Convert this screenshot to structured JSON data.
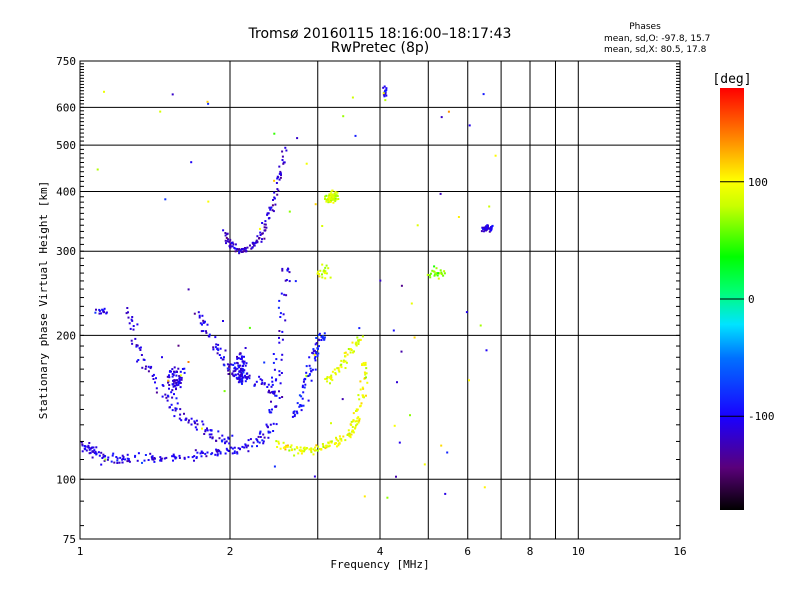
{
  "chart_data": {
    "type": "scatter",
    "title": "Tromsø 20160115 18:16:00–18:17:43",
    "subtitle": "RwPretec (8p)",
    "xlabel": "Frequency [MHz]",
    "ylabel": "Stationary phase Virtual Height [km]",
    "x_scale": "log",
    "y_scale": "log",
    "xlim": [
      1,
      16
    ],
    "ylim": [
      75,
      750
    ],
    "x_ticks": [
      1,
      2,
      4,
      6,
      8,
      10,
      16
    ],
    "x_minor_ticks": [
      3,
      5,
      7,
      9
    ],
    "y_ticks": [
      75,
      100,
      200,
      300,
      400,
      500,
      600,
      750
    ],
    "grid": true,
    "phase_stats": {
      "heading": "Phases",
      "o_line": "mean, sd,O:  -97.8, 15.7",
      "x_line": "mean, sd,X:   80.5, 17.8"
    },
    "colorbar": {
      "label": "[deg]",
      "range": [
        -180,
        180
      ],
      "ticks": [
        100,
        0,
        -100
      ],
      "tick_labels": [
        "100",
        "0",
        "-100"
      ]
    },
    "series_groups": [
      {
        "kind": "line",
        "points": [
          [
            1.0,
            120
          ],
          [
            1.05,
            115
          ],
          [
            1.1,
            112
          ],
          [
            1.2,
            110
          ],
          [
            1.35,
            110
          ],
          [
            1.5,
            111
          ],
          [
            1.7,
            112
          ],
          [
            1.9,
            114
          ],
          [
            2.1,
            116
          ],
          [
            2.3,
            120
          ],
          [
            2.4,
            130
          ],
          [
            2.48,
            160
          ],
          [
            2.55,
            220
          ],
          [
            2.6,
            280
          ]
        ],
        "phase": -105,
        "spread": 0.035
      },
      {
        "kind": "line",
        "points": [
          [
            1.25,
            230
          ],
          [
            1.3,
            190
          ],
          [
            1.4,
            160
          ],
          [
            1.55,
            140
          ],
          [
            1.7,
            130
          ],
          [
            1.85,
            124
          ],
          [
            2.0,
            120
          ]
        ],
        "phase": -110,
        "spread": 0.04
      },
      {
        "kind": "line",
        "points": [
          [
            1.7,
            230
          ],
          [
            1.8,
            200
          ],
          [
            1.95,
            175
          ],
          [
            2.1,
            165
          ],
          [
            2.3,
            160
          ],
          [
            2.5,
            150
          ]
        ],
        "phase": -108,
        "spread": 0.04
      },
      {
        "kind": "line",
        "points": [
          [
            1.95,
            330
          ],
          [
            2.0,
            310
          ],
          [
            2.1,
            300
          ],
          [
            2.2,
            305
          ],
          [
            2.3,
            320
          ],
          [
            2.4,
            360
          ],
          [
            2.5,
            420
          ],
          [
            2.6,
            500
          ]
        ],
        "phase": -118,
        "spread": 0.025
      },
      {
        "kind": "line",
        "points": [
          [
            2.5,
            118
          ],
          [
            2.7,
            116
          ],
          [
            2.9,
            115
          ],
          [
            3.1,
            117
          ],
          [
            3.3,
            120
          ],
          [
            3.5,
            125
          ],
          [
            3.6,
            135
          ],
          [
            3.7,
            155
          ],
          [
            3.75,
            180
          ]
        ],
        "phase": 95,
        "spread": 0.03
      },
      {
        "kind": "line",
        "points": [
          [
            2.7,
            135
          ],
          [
            2.8,
            150
          ],
          [
            2.9,
            170
          ],
          [
            3.0,
            190
          ],
          [
            3.05,
            200
          ]
        ],
        "phase": -95,
        "spread": 0.03
      },
      {
        "kind": "line",
        "points": [
          [
            3.1,
            160
          ],
          [
            3.3,
            170
          ],
          [
            3.5,
            185
          ],
          [
            3.7,
            200
          ]
        ],
        "phase": 90,
        "spread": 0.03
      },
      {
        "kind": "cluster",
        "center": [
          3.2,
          390
        ],
        "size": [
          0.04,
          0.04
        ],
        "phase": 82,
        "count": 70
      },
      {
        "kind": "cluster",
        "center": [
          1.55,
          160
        ],
        "size": [
          0.05,
          0.1
        ],
        "phase": -110,
        "count": 60
      },
      {
        "kind": "cluster",
        "center": [
          2.1,
          170
        ],
        "size": [
          0.04,
          0.12
        ],
        "phase": -105,
        "count": 80
      },
      {
        "kind": "cluster",
        "center": [
          6.6,
          335
        ],
        "size": [
          0.04,
          0.02
        ],
        "phase": -112,
        "count": 40
      },
      {
        "kind": "cluster",
        "center": [
          4.1,
          650
        ],
        "size": [
          0.015,
          0.04
        ],
        "phase": -100,
        "count": 15
      },
      {
        "kind": "cluster",
        "center": [
          1.1,
          225
        ],
        "size": [
          0.04,
          0.02
        ],
        "phase": -100,
        "count": 15
      },
      {
        "kind": "cluster",
        "center": [
          5.2,
          270
        ],
        "size": [
          0.06,
          0.06
        ],
        "phase": 60,
        "count": 25
      },
      {
        "kind": "cluster",
        "center": [
          3.1,
          270
        ],
        "size": [
          0.05,
          0.05
        ],
        "phase": 90,
        "count": 20
      },
      {
        "kind": "scatter",
        "box": [
          [
            1.0,
            90
          ],
          [
            7.5,
            650
          ]
        ],
        "count": 80
      }
    ]
  }
}
